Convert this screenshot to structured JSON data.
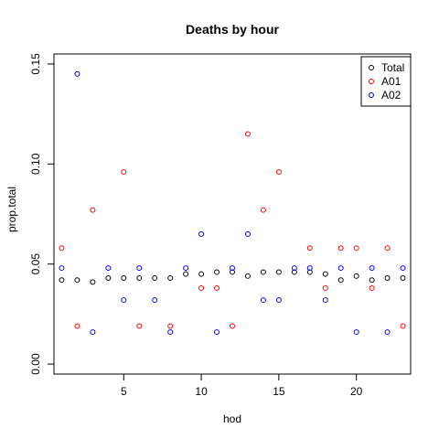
{
  "chart_data": {
    "type": "scatter",
    "title": "Deaths by hour",
    "xlabel": "hod",
    "ylabel": "prop.total",
    "xlim": [
      0.5,
      23.5
    ],
    "ylim": [
      -0.005,
      0.155
    ],
    "x_ticks": [
      5,
      10,
      15,
      20
    ],
    "y_ticks": [
      0.0,
      0.05,
      0.1,
      0.15
    ],
    "y_tick_labels": [
      "0.00",
      "0.05",
      "0.10",
      "0.15"
    ],
    "x_tick_labels": [
      "5",
      "10",
      "15",
      "20"
    ],
    "grid": false,
    "legend_position": "top-right",
    "x": [
      1,
      2,
      3,
      4,
      5,
      6,
      7,
      8,
      9,
      10,
      11,
      12,
      13,
      14,
      15,
      16,
      17,
      18,
      19,
      20,
      21,
      22,
      23
    ],
    "series": [
      {
        "name": "Total",
        "color": "#000000",
        "values": [
          0.042,
          0.042,
          0.041,
          0.043,
          0.043,
          0.043,
          0.043,
          0.043,
          0.045,
          0.045,
          0.046,
          0.046,
          0.044,
          0.046,
          0.046,
          0.046,
          0.046,
          0.045,
          0.042,
          0.044,
          0.042,
          0.043,
          0.043
        ]
      },
      {
        "name": "A01",
        "color": "#ff0000",
        "values": [
          0.058,
          0.019,
          0.077,
          null,
          0.096,
          0.019,
          null,
          0.019,
          null,
          0.038,
          0.038,
          0.019,
          0.115,
          0.077,
          0.096,
          null,
          0.058,
          0.038,
          0.058,
          0.058,
          0.038,
          0.058,
          0.019
        ]
      },
      {
        "name": "A02",
        "color": "#0000ff",
        "values": [
          0.048,
          0.145,
          0.016,
          0.048,
          0.032,
          0.048,
          0.032,
          0.016,
          0.048,
          0.065,
          0.016,
          0.048,
          0.065,
          0.032,
          0.032,
          0.048,
          0.048,
          0.032,
          0.048,
          0.016,
          0.048,
          0.016,
          0.048
        ]
      }
    ]
  }
}
